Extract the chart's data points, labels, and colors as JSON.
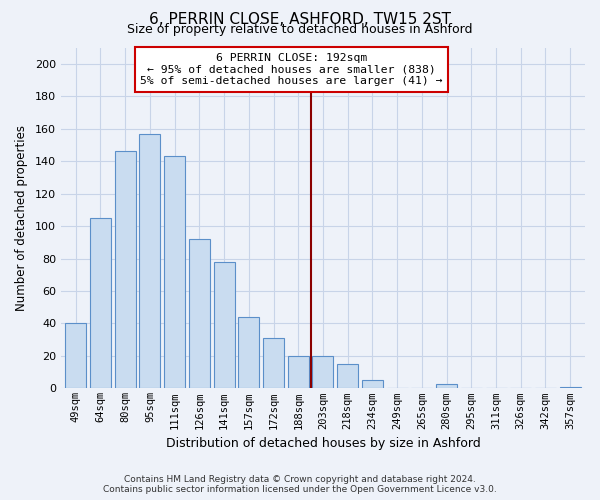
{
  "title": "6, PERRIN CLOSE, ASHFORD, TW15 2ST",
  "subtitle": "Size of property relative to detached houses in Ashford",
  "xlabel": "Distribution of detached houses by size in Ashford",
  "ylabel": "Number of detached properties",
  "bar_labels": [
    "49sqm",
    "64sqm",
    "80sqm",
    "95sqm",
    "111sqm",
    "126sqm",
    "141sqm",
    "157sqm",
    "172sqm",
    "188sqm",
    "203sqm",
    "218sqm",
    "234sqm",
    "249sqm",
    "265sqm",
    "280sqm",
    "295sqm",
    "311sqm",
    "326sqm",
    "342sqm",
    "357sqm"
  ],
  "bar_values": [
    40,
    105,
    146,
    157,
    143,
    92,
    78,
    44,
    31,
    20,
    20,
    15,
    5,
    0,
    0,
    3,
    0,
    0,
    0,
    0,
    1
  ],
  "bar_color": "#c9dcf0",
  "bar_edge_color": "#5b8fc9",
  "ylim": [
    0,
    210
  ],
  "yticks": [
    0,
    20,
    40,
    60,
    80,
    100,
    120,
    140,
    160,
    180,
    200
  ],
  "vline_x_index": 9.5,
  "vline_color": "#8b0000",
  "annotation_line1": "6 PERRIN CLOSE: 192sqm",
  "annotation_line2": "← 95% of detached houses are smaller (838)",
  "annotation_line3": "5% of semi-detached houses are larger (41) →",
  "footer_text": "Contains HM Land Registry data © Crown copyright and database right 2024.\nContains public sector information licensed under the Open Government Licence v3.0.",
  "background_color": "#eef2f9",
  "grid_color": "#d0d8e8"
}
